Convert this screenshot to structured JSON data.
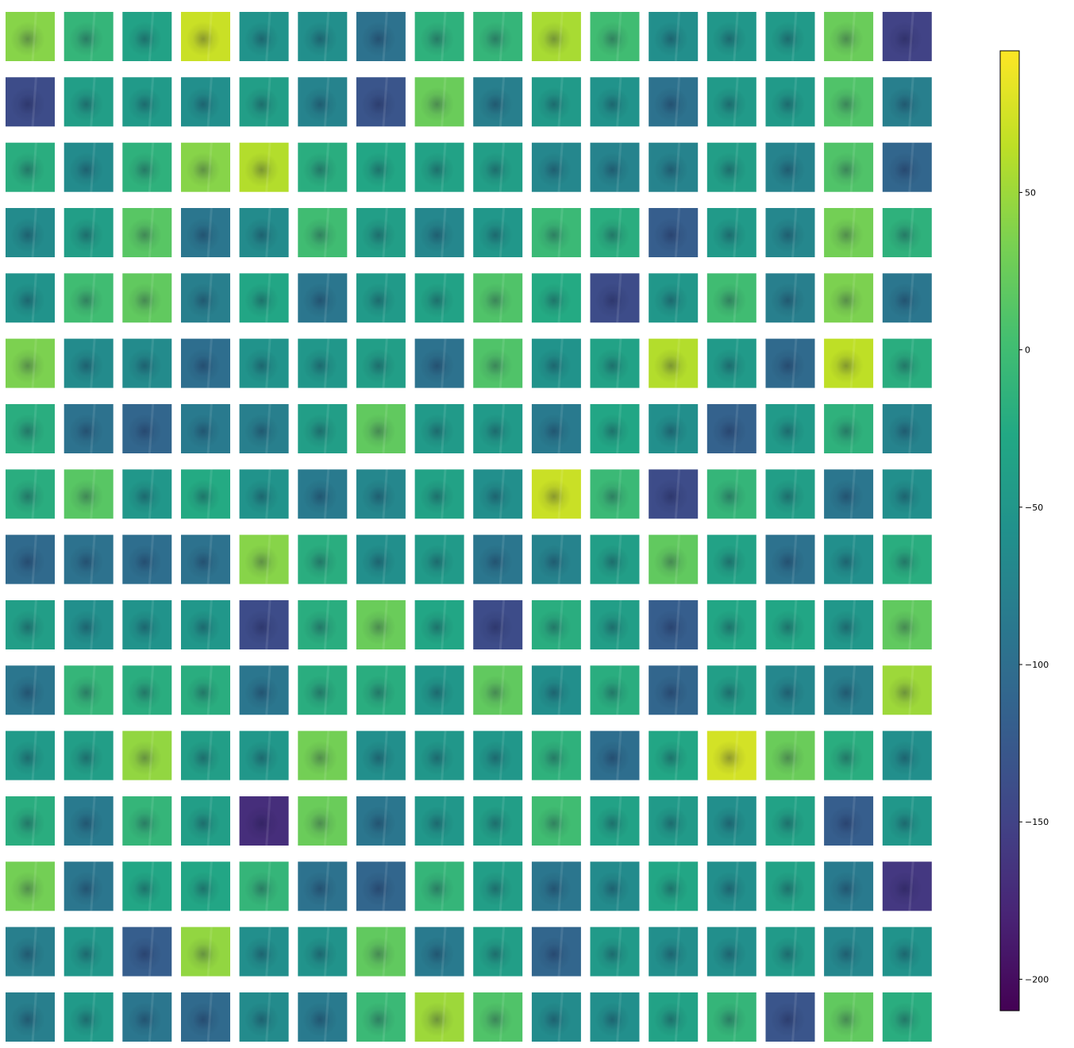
{
  "chart_data": {
    "type": "heatmap",
    "rows": 16,
    "cols": 16,
    "colormap": "viridis",
    "colorbar": {
      "vmin": -210,
      "vmax": 95,
      "orientation": "vertical",
      "placement": "right",
      "ticks": [
        -200,
        -150,
        -100,
        -50,
        0,
        50
      ],
      "tick_labels": [
        "−200",
        "−150",
        "−100",
        "−50",
        "0",
        "50"
      ]
    },
    "axes": "off",
    "panel_mean_values": [
      [
        40,
        -10,
        -35,
        70,
        -55,
        -60,
        -95,
        -15,
        -10,
        55,
        0,
        -60,
        -50,
        -45,
        25,
        -150
      ],
      [
        -140,
        -40,
        -45,
        -60,
        -40,
        -75,
        -130,
        25,
        -80,
        -45,
        -55,
        -95,
        -45,
        -45,
        10,
        -80
      ],
      [
        -20,
        -65,
        -15,
        40,
        60,
        -20,
        -30,
        -35,
        -40,
        -70,
        -75,
        -75,
        -40,
        -75,
        10,
        -110
      ],
      [
        -65,
        -40,
        15,
        -90,
        -65,
        0,
        -40,
        -70,
        -50,
        -5,
        -20,
        -120,
        -45,
        -70,
        30,
        -15
      ],
      [
        -55,
        0,
        20,
        -80,
        -30,
        -90,
        -45,
        -35,
        10,
        -25,
        -140,
        -50,
        0,
        -80,
        35,
        -90
      ],
      [
        35,
        -65,
        -65,
        -100,
        -55,
        -50,
        -40,
        -95,
        10,
        -55,
        -35,
        60,
        -45,
        -105,
        65,
        -20
      ],
      [
        -20,
        -95,
        -110,
        -85,
        -80,
        -40,
        20,
        -45,
        -45,
        -85,
        -30,
        -60,
        -115,
        -45,
        -15,
        -75
      ],
      [
        -20,
        15,
        -50,
        -25,
        -55,
        -85,
        -70,
        -35,
        -60,
        70,
        -5,
        -140,
        -10,
        -40,
        -90,
        -60
      ],
      [
        -105,
        -95,
        -100,
        -95,
        40,
        -20,
        -60,
        -45,
        -90,
        -75,
        -40,
        20,
        -35,
        -95,
        -60,
        -20
      ],
      [
        -40,
        -60,
        -55,
        -50,
        -140,
        -20,
        25,
        -30,
        -140,
        -20,
        -40,
        -120,
        -30,
        -30,
        -50,
        20
      ],
      [
        -90,
        -10,
        -20,
        -20,
        -90,
        -20,
        -20,
        -50,
        20,
        -60,
        -20,
        -110,
        -40,
        -70,
        -80,
        50
      ],
      [
        -45,
        -40,
        45,
        -40,
        -50,
        30,
        -60,
        -50,
        -50,
        -15,
        -100,
        -30,
        75,
        25,
        -20,
        -60
      ],
      [
        -20,
        -85,
        -10,
        -40,
        -170,
        25,
        -90,
        -50,
        -40,
        0,
        -35,
        -45,
        -60,
        -35,
        -120,
        -50
      ],
      [
        30,
        -90,
        -30,
        -30,
        -10,
        -95,
        -110,
        -10,
        -40,
        -90,
        -65,
        -30,
        -60,
        -35,
        -85,
        -160
      ],
      [
        -80,
        -50,
        -120,
        45,
        -60,
        -55,
        20,
        -85,
        -40,
        -110,
        -45,
        -60,
        -60,
        -45,
        -70,
        -55
      ],
      [
        -80,
        -45,
        -90,
        -105,
        -65,
        -85,
        -5,
        50,
        10,
        -65,
        -60,
        -35,
        -10,
        -130,
        20,
        -20
      ]
    ]
  }
}
